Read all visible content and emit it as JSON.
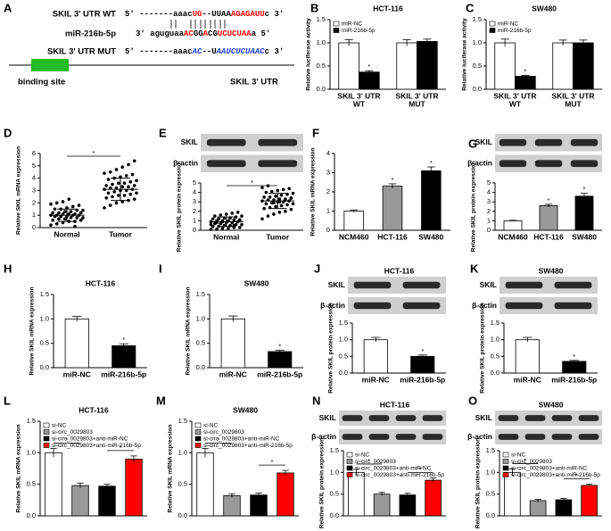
{
  "diagram": {
    "panel": "A",
    "rows": [
      {
        "label": "SKIL 3' UTR WT",
        "segments": [
          {
            "text": "5' -------aaac",
            "color": "#000000"
          },
          {
            "text": "UG",
            "color": "#ff0000"
          },
          {
            "text": "--UUAA",
            "color": "#000000"
          },
          {
            "text": "AGAGAUU",
            "color": "#ff0000"
          },
          {
            "text": "c 3'",
            "color": "#000000"
          }
        ]
      },
      {
        "label": "miR-216b-5p",
        "segments": [
          {
            "text": "3' aguguaa",
            "color": "#000000"
          },
          {
            "text": "AC",
            "color": "#ff0000"
          },
          {
            "text": "GG",
            "color": "#000000"
          },
          {
            "text": "A",
            "color": "#ff0000"
          },
          {
            "text": "CG",
            "color": "#000000"
          },
          {
            "text": "UCUCUAA",
            "color": "#ff0000"
          },
          {
            "text": "a 5'",
            "color": "#000000"
          }
        ]
      },
      {
        "label": "SKIL 3' UTR MUT",
        "segments": [
          {
            "text": "5' -------aaac",
            "color": "#000000"
          },
          {
            "text": "AC",
            "color": "#1a3fd6",
            "italic": true
          },
          {
            "text": "--U",
            "color": "#000000"
          },
          {
            "text": "AA",
            "color": "#1a3fd6",
            "italic": true
          },
          {
            "text": "UCUCUAAC",
            "color": "#1a3fd6",
            "italic": true
          },
          {
            "text": "c 3'",
            "color": "#000000"
          }
        ]
      }
    ],
    "binding_site": "binding site",
    "region": "SKIL 3' UTR",
    "site_color": "#22bb22"
  },
  "chart_data": [
    {
      "type": "bar",
      "panel": "B",
      "title": "HCT-116",
      "ylabel": "Relative luciferase activity",
      "categories": [
        [
          "SKIL 3' UTR",
          "WT"
        ],
        [
          "SKIL 3' UTR",
          "MUT"
        ]
      ],
      "series": [
        {
          "name": "miR-NC",
          "color": "#ffffff",
          "values": [
            1.0,
            1.0
          ],
          "errors": [
            0.07,
            0.07
          ]
        },
        {
          "name": "miR-216b-5p",
          "color": "#000000",
          "values": [
            0.37,
            1.03
          ],
          "errors": [
            0.03,
            0.05
          ],
          "sig_labels": [
            "*",
            null
          ]
        }
      ],
      "ylim": [
        0,
        1.5
      ],
      "yticks": [
        {
          "value": 0,
          "label": "0.0"
        },
        0.5,
        {
          "value": 1,
          "label": "1.0"
        },
        1.5
      ],
      "legend": "upper left"
    },
    {
      "type": "bar",
      "panel": "C",
      "title": "SW480",
      "ylabel": "Relative luciferase activity",
      "categories": [
        [
          "SKIL 3' UTR",
          "WT"
        ],
        [
          "SKIL 3' UTR",
          "MUT"
        ]
      ],
      "series": [
        {
          "name": "miR-NC",
          "color": "#ffffff",
          "values": [
            1.0,
            1.0
          ],
          "errors": [
            0.08,
            0.06
          ]
        },
        {
          "name": "miR-216b-5p",
          "color": "#000000",
          "values": [
            0.28,
            1.0
          ],
          "errors": [
            0.02,
            0.06
          ],
          "sig_labels": [
            "*",
            null
          ]
        }
      ],
      "ylim": [
        0,
        1.5
      ],
      "yticks": [
        {
          "value": 0,
          "label": "0.0"
        },
        0.5,
        {
          "value": 1,
          "label": "1.0"
        },
        1.5
      ],
      "legend": "upper left"
    },
    {
      "type": "strip",
      "panel": "D",
      "ylabel": "Relative SKIL mRNA expression",
      "categories": [
        "Normal",
        "Tumor"
      ],
      "groups": [
        [
          0.2,
          0.3,
          0.4,
          0.5,
          0.5,
          0.6,
          0.6,
          0.7,
          0.7,
          0.8,
          0.8,
          0.8,
          0.9,
          0.9,
          0.9,
          1.0,
          1.0,
          1.0,
          1.0,
          1.1,
          1.1,
          1.1,
          1.2,
          1.2,
          1.2,
          1.3,
          1.3,
          1.4,
          1.4,
          1.5,
          1.5,
          1.6,
          1.7,
          1.8,
          1.9,
          2.0,
          2.1,
          2.3,
          0.1,
          0.6
        ],
        [
          1.6,
          1.8,
          2.0,
          2.1,
          2.2,
          2.3,
          2.4,
          2.5,
          2.6,
          2.6,
          2.7,
          2.8,
          2.8,
          2.9,
          3.0,
          3.0,
          3.1,
          3.1,
          3.2,
          3.2,
          3.3,
          3.3,
          3.4,
          3.4,
          3.5,
          3.6,
          3.6,
          3.7,
          3.8,
          3.9,
          4.0,
          4.1,
          4.2,
          4.3,
          4.4,
          4.5,
          4.7,
          4.9,
          5.1,
          5.4
        ]
      ],
      "means": [
        1.0,
        3.1
      ],
      "errors": [
        0.5,
        0.9
      ],
      "sig_labels": [
        null,
        "*"
      ],
      "sig_brackets": true,
      "ylim": [
        0,
        6
      ],
      "yticks": [
        0,
        1,
        2,
        3,
        4,
        5,
        6
      ]
    },
    {
      "type": "strip",
      "panel": "E",
      "ylabel": "Relative SKIL protein expression",
      "blot_labels": [
        "SKIL",
        "β-actin"
      ],
      "categories": [
        "Normal",
        "Tumor"
      ],
      "groups": [
        [
          0.1,
          0.1,
          0.2,
          0.2,
          0.3,
          0.3,
          0.4,
          0.4,
          0.5,
          0.5,
          0.6,
          0.6,
          0.7,
          0.7,
          0.8,
          0.8,
          0.9,
          0.9,
          1.0,
          1.0,
          1.0,
          1.1,
          1.1,
          1.2,
          1.2,
          1.3,
          1.3,
          1.4,
          1.5,
          1.5,
          1.6,
          1.7,
          1.8,
          1.9,
          0.6,
          0.8,
          0.9,
          1.0,
          0.5,
          1.1
        ],
        [
          1.2,
          1.5,
          1.7,
          1.9,
          2.0,
          2.2,
          2.3,
          2.4,
          2.5,
          2.6,
          2.7,
          2.8,
          2.8,
          2.9,
          3.0,
          3.0,
          3.1,
          3.1,
          3.2,
          3.2,
          3.3,
          3.3,
          3.4,
          3.5,
          3.5,
          3.6,
          3.7,
          3.8,
          3.9,
          4.0,
          4.1,
          4.2,
          4.3,
          4.4,
          4.5,
          4.7,
          2.9,
          3.0,
          3.2,
          3.4
        ]
      ],
      "means": [
        0.9,
        3.1
      ],
      "errors": [
        0.5,
        0.8
      ],
      "sig_labels": [
        null,
        "*"
      ],
      "sig_brackets": true,
      "ylim": [
        0,
        5
      ],
      "yticks": [
        0,
        1,
        2,
        3,
        4,
        5
      ]
    },
    {
      "type": "bar",
      "panel": "F",
      "ylabel": "Relative SKIL mRNA expression",
      "categories": [
        "NCM460",
        "HCT-116",
        "SW480"
      ],
      "values": [
        1.0,
        2.3,
        3.1
      ],
      "errors": [
        0.06,
        0.12,
        0.2
      ],
      "colors": [
        "#ffffff",
        "#999999",
        "#000000"
      ],
      "sig_labels": [
        null,
        "*",
        "*"
      ],
      "ylim": [
        0,
        4
      ],
      "yticks": [
        0,
        1,
        2,
        3,
        4
      ]
    },
    {
      "type": "bar",
      "panel": "G",
      "ylabel": "Relative SKIL protein expression",
      "blot_labels": [
        "SKIL",
        "β-actin"
      ],
      "categories": [
        "NCM460",
        "HCT-116",
        "SW480"
      ],
      "values": [
        1.0,
        2.6,
        3.6
      ],
      "errors": [
        0.05,
        0.15,
        0.3
      ],
      "colors": [
        "#ffffff",
        "#999999",
        "#000000"
      ],
      "sig_labels": [
        null,
        "*",
        "*"
      ],
      "ylim": [
        0,
        5
      ],
      "yticks": [
        0,
        1,
        2,
        3,
        4,
        5
      ]
    },
    {
      "type": "bar",
      "panel": "H",
      "title": "HCT-116",
      "ylabel": "Relative SKIL mRNA expression",
      "categories": [
        "miR-NC",
        "miR-216b-5p"
      ],
      "values": [
        1.0,
        0.45
      ],
      "errors": [
        0.05,
        0.04
      ],
      "colors": [
        "#ffffff",
        "#000000"
      ],
      "sig_labels": [
        null,
        "*"
      ],
      "ylim": [
        0,
        1.5
      ],
      "yticks": [
        {
          "value": 0,
          "label": "0.0"
        },
        0.5,
        {
          "value": 1,
          "label": "1.0"
        },
        1.5
      ]
    },
    {
      "type": "bar",
      "panel": "I",
      "title": "SW480",
      "ylabel": "Relative SKIL mRNA expression",
      "categories": [
        "miR-NC",
        "miR-216b-5p"
      ],
      "values": [
        1.0,
        0.33
      ],
      "errors": [
        0.06,
        0.03
      ],
      "colors": [
        "#ffffff",
        "#000000"
      ],
      "sig_labels": [
        null,
        "*"
      ],
      "ylim": [
        0,
        1.5
      ],
      "yticks": [
        {
          "value": 0,
          "label": "0.0"
        },
        0.5,
        {
          "value": 1,
          "label": "1.0"
        },
        1.5
      ]
    },
    {
      "type": "bar",
      "panel": "J",
      "title": "HCT-116",
      "ylabel": "Relative SKIL protein expression",
      "blot_labels": [
        "SKIL",
        "β-actin"
      ],
      "categories": [
        "miR-NC",
        "miR-216b-5p"
      ],
      "values": [
        1.0,
        0.5
      ],
      "errors": [
        0.07,
        0.04
      ],
      "colors": [
        "#ffffff",
        "#000000"
      ],
      "sig_labels": [
        null,
        "*"
      ],
      "ylim": [
        0,
        1.5
      ],
      "yticks": [
        {
          "value": 0,
          "label": "0.0"
        },
        0.5,
        {
          "value": 1,
          "label": "1.0"
        },
        1.5
      ]
    },
    {
      "type": "bar",
      "panel": "K",
      "title": "SW480",
      "ylabel": "Relative SKIL protein expression",
      "blot_labels": [
        "SKIL",
        "β-actin"
      ],
      "categories": [
        "miR-NC",
        "miR-216b-5p"
      ],
      "values": [
        1.0,
        0.35
      ],
      "errors": [
        0.07,
        0.03
      ],
      "colors": [
        "#ffffff",
        "#000000"
      ],
      "sig_labels": [
        null,
        "*"
      ],
      "ylim": [
        0,
        1.5
      ],
      "yticks": [
        {
          "value": 0,
          "label": "0.0"
        },
        0.5,
        {
          "value": 1,
          "label": "1.0"
        },
        1.5
      ]
    },
    {
      "type": "bar",
      "panel": "L",
      "title": "HCT-116",
      "ylabel": "Relative SKIL mRNA expression",
      "series": [
        {
          "name": "si-NC",
          "color": "#ffffff",
          "values": [
            1.0
          ],
          "errors": [
            0.07
          ]
        },
        {
          "name": "si-circ_0029803",
          "color": "#999999",
          "values": [
            0.48
          ],
          "errors": [
            0.04
          ]
        },
        {
          "name": "si-circ_0029803+anti-miR-NC",
          "color": "#000000",
          "values": [
            0.47
          ],
          "errors": [
            0.03
          ]
        },
        {
          "name": "si-circ_0029803+anti-miR-216b-5p",
          "color": "#ff0000",
          "values": [
            0.9
          ],
          "errors": [
            0.05
          ]
        }
      ],
      "sig_labels": [
        null,
        "*",
        null,
        "*"
      ],
      "sig_brackets": true,
      "legend": "upper left",
      "ylim": [
        0,
        1.5
      ],
      "yticks": [
        {
          "value": 0,
          "label": "0.0"
        },
        0.5,
        {
          "value": 1,
          "label": "1.0"
        },
        1.5
      ]
    },
    {
      "type": "bar",
      "panel": "M",
      "title": "SW480",
      "ylabel": "Relative SKIL mRNA expression",
      "series": [
        {
          "name": "si-NC",
          "color": "#ffffff",
          "values": [
            1.0
          ],
          "errors": [
            0.07
          ]
        },
        {
          "name": "si-circ_0029803",
          "color": "#999999",
          "values": [
            0.32
          ],
          "errors": [
            0.03
          ]
        },
        {
          "name": "si-circ_0029803+anti-miR-NC",
          "color": "#000000",
          "values": [
            0.33
          ],
          "errors": [
            0.03
          ]
        },
        {
          "name": "si-circ_0029803+anti-miR-216b-5p",
          "color": "#ff0000",
          "values": [
            0.68
          ],
          "errors": [
            0.04
          ]
        }
      ],
      "sig_labels": [
        null,
        "*",
        null,
        "*"
      ],
      "sig_brackets": true,
      "legend": "upper left",
      "ylim": [
        0,
        1.5
      ],
      "yticks": [
        {
          "value": 0,
          "label": "0.0"
        },
        0.5,
        {
          "value": 1,
          "label": "1.0"
        },
        1.5
      ]
    },
    {
      "type": "bar",
      "panel": "N",
      "title": "HCT-116",
      "ylabel": "Relative SKIL protein expression",
      "blot_labels": [
        "SKIL",
        "β-actin"
      ],
      "series": [
        {
          "name": "si-NC",
          "color": "#ffffff",
          "values": [
            1.0
          ],
          "errors": [
            0.07
          ]
        },
        {
          "name": "si-circ_0029803",
          "color": "#999999",
          "values": [
            0.5
          ],
          "errors": [
            0.04
          ]
        },
        {
          "name": "si-circ_0029803+anti-miR-NC",
          "color": "#000000",
          "values": [
            0.48
          ],
          "errors": [
            0.04
          ]
        },
        {
          "name": "si-circ_0029803+anti-miR-216b-5p",
          "color": "#ff0000",
          "values": [
            0.82
          ],
          "errors": [
            0.05
          ]
        }
      ],
      "sig_labels": [
        null,
        "*",
        null,
        "*"
      ],
      "sig_brackets": true,
      "legend": "upper left",
      "ylim": [
        0,
        1.5
      ],
      "yticks": [
        {
          "value": 0,
          "label": "0.0"
        },
        0.5,
        {
          "value": 1,
          "label": "1.0"
        },
        1.5
      ]
    },
    {
      "type": "bar",
      "panel": "O",
      "title": "SW480",
      "ylabel": "Relative SKIL protein expression",
      "blot_labels": [
        "SKIL",
        "β-actin"
      ],
      "series": [
        {
          "name": "si-NC",
          "color": "#ffffff",
          "values": [
            1.0
          ],
          "errors": [
            0.08
          ]
        },
        {
          "name": "si-circ_0029803",
          "color": "#999999",
          "values": [
            0.35
          ],
          "errors": [
            0.03
          ]
        },
        {
          "name": "si-circ_0029803+anti-miR-NC",
          "color": "#000000",
          "values": [
            0.37
          ],
          "errors": [
            0.03
          ]
        },
        {
          "name": "si-circ_0029803+anti-miR-216b-5p",
          "color": "#ff0000",
          "values": [
            0.7
          ],
          "errors": [
            0.03
          ]
        }
      ],
      "sig_labels": [
        null,
        "*",
        null,
        "*"
      ],
      "sig_brackets": true,
      "legend": "upper left",
      "ylim": [
        0,
        1.5
      ],
      "yticks": [
        {
          "value": 0,
          "label": "0.0"
        },
        0.5,
        {
          "value": 1,
          "label": "1.0"
        },
        1.5
      ]
    }
  ]
}
